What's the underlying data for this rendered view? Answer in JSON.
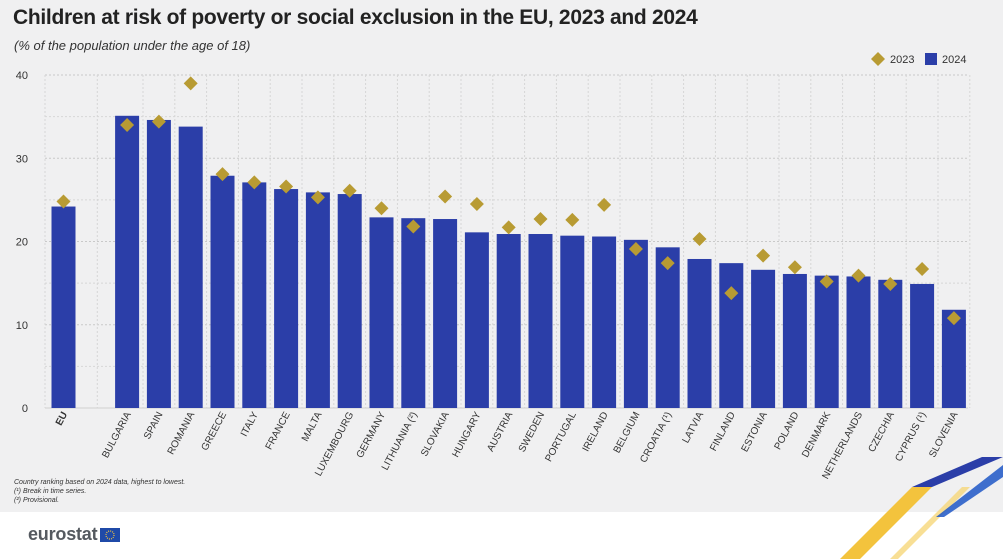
{
  "header": {
    "title": "Children at risk of poverty or social exclusion in the EU, 2023 and 2024",
    "subtitle": "(% of the population under the age of 18)"
  },
  "notes": [
    "Country ranking based on 2024 data, highest to lowest.",
    "(¹) Break in time series.",
    "(²) Provisional."
  ],
  "footer": {
    "logo_text": "eurostat"
  },
  "colors": {
    "bar_2024": "#2b3ea8",
    "marker_2023": "#b89b33",
    "background": "#f0f0f1",
    "grid": "#c9c9c9"
  },
  "chart_data": {
    "type": "bar",
    "title": "Children at risk of poverty or social exclusion in the EU, 2023 and 2024",
    "subtitle": "(% of the population under the age of 18)",
    "categories": [
      "EU",
      "BULGARIA",
      "SPAIN",
      "ROMANIA",
      "GREECE",
      "ITALY",
      "FRANCE",
      "MALTA",
      "LUXEMBOURG",
      "GERMANY",
      "LITHUANIA (²)",
      "SLOVAKIA",
      "HUNGARY",
      "AUSTRIA",
      "SWEDEN",
      "PORTUGAL",
      "IRELAND",
      "BELGIUM",
      "CROATIA (¹)",
      "LATVIA",
      "FINLAND",
      "ESTONIA",
      "POLAND",
      "DENMARK",
      "NETHERLANDS",
      "CZECHIA",
      "CYPRUS (¹)",
      "SLOVENIA"
    ],
    "series": [
      {
        "name": "2024",
        "kind": "bar",
        "color": "#2b3ea8",
        "values": [
          24.2,
          35.1,
          34.6,
          33.8,
          27.9,
          27.1,
          26.3,
          25.9,
          25.7,
          22.9,
          22.8,
          22.7,
          21.1,
          20.9,
          20.9,
          20.7,
          20.6,
          20.2,
          19.3,
          17.9,
          17.4,
          16.6,
          16.1,
          15.9,
          15.8,
          15.4,
          14.9,
          11.8
        ]
      },
      {
        "name": "2023",
        "kind": "marker",
        "color": "#b89b33",
        "values": [
          24.8,
          34.0,
          34.4,
          39.0,
          28.1,
          27.1,
          26.6,
          25.3,
          26.1,
          24.0,
          21.8,
          25.4,
          24.5,
          21.7,
          22.7,
          22.6,
          24.4,
          19.1,
          17.4,
          20.3,
          13.8,
          18.3,
          16.9,
          15.2,
          15.9,
          14.9,
          16.7,
          10.8
        ]
      }
    ],
    "yticks": [
      0,
      10,
      20,
      30,
      40
    ],
    "ylim": [
      0,
      40
    ],
    "grid": true,
    "legend_position": "top-right"
  }
}
